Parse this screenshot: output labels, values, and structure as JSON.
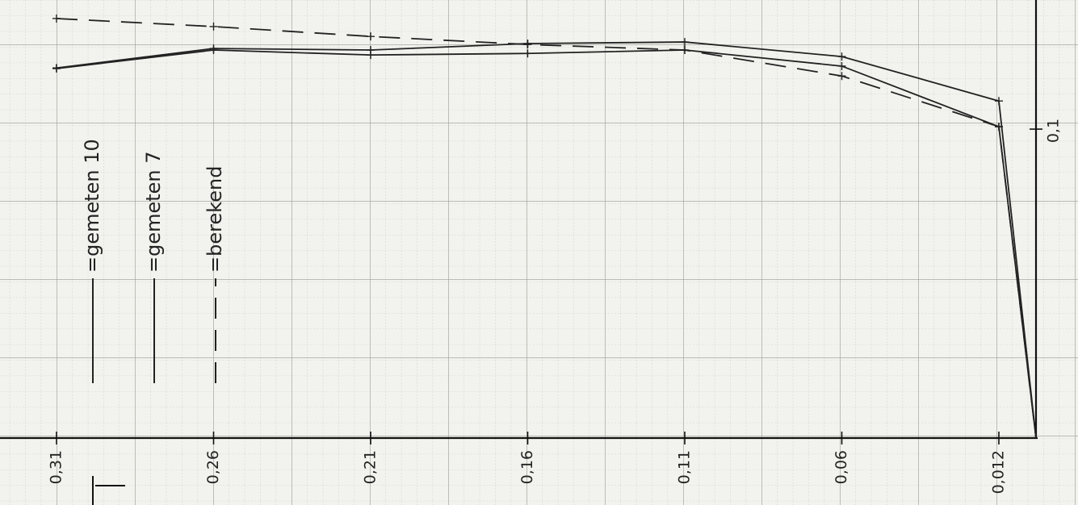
{
  "chart_data": {
    "type": "line",
    "categories": [
      "0,31",
      "0,26",
      "0,21",
      "0,16",
      "0,11",
      "0,06",
      "0,012",
      null
    ],
    "series": [
      {
        "name": "=gemeten 10",
        "color": "#222222",
        "style": "solid",
        "values": [
          0.1198,
          0.1261,
          0.1256,
          0.1277,
          0.1282,
          0.1235,
          0.1091,
          0
        ]
      },
      {
        "name": "=gemeten 7",
        "color": "#222222",
        "style": "solid",
        "values": [
          0.1196,
          0.1256,
          0.124,
          0.1245,
          0.1256,
          0.1204,
          0.1008,
          0
        ]
      },
      {
        "name": "=berekend",
        "color": "#222222",
        "style": "dashed",
        "values": [
          0.1358,
          0.1332,
          0.13,
          0.1274,
          0.1256,
          0.1172,
          0.1008,
          0
        ]
      }
    ],
    "ylim": [
      0,
      0.1418
    ],
    "yticks": [
      {
        "value": 0.1,
        "label": "0,1"
      }
    ]
  }
}
